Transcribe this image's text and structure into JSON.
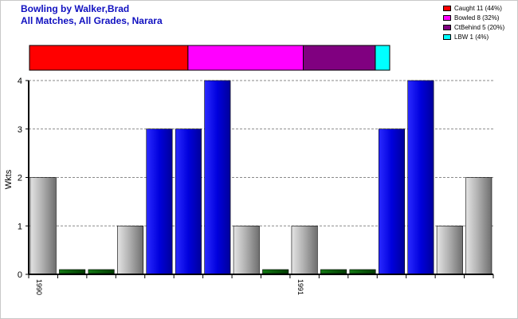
{
  "title": "Bowling by Walker,Brad",
  "subtitle": "All Matches, All Grades, Narara",
  "legend": [
    {
      "label": "Caught 11 (44%)",
      "color": "#ff0000"
    },
    {
      "label": "Bowled 8 (32%)",
      "color": "#ff00ff"
    },
    {
      "label": "CtBehind 5 (20%)",
      "color": "#800080"
    },
    {
      "label": "LBW 1 (4%)",
      "color": "#00ffff"
    }
  ],
  "chart_data": {
    "type": "bar",
    "ylabel": "Wkts",
    "xlabel": "",
    "ylim": [
      0,
      4
    ],
    "yticks": [
      0,
      1,
      2,
      3,
      4
    ],
    "grid": true,
    "legend_position": "top-right",
    "year_labels": [
      {
        "label": "1990",
        "index": 0
      },
      {
        "label": "1991",
        "index": 9
      }
    ],
    "values": [
      2,
      0,
      0,
      1,
      3,
      3,
      4,
      1,
      0,
      1,
      0,
      0,
      3,
      4,
      1,
      2
    ],
    "bar_kinds": [
      "gray",
      "green",
      "green",
      "gray",
      "blue",
      "blue",
      "blue",
      "gray",
      "green",
      "gray",
      "green",
      "green",
      "blue",
      "blue",
      "gray",
      "gray"
    ],
    "dismissals": [
      {
        "name": "Caught",
        "value": 11,
        "color": "#ff0000"
      },
      {
        "name": "Bowled",
        "value": 8,
        "color": "#ff00ff"
      },
      {
        "name": "CtBehind",
        "value": 5,
        "color": "#800080"
      },
      {
        "name": "LBW",
        "value": 1,
        "color": "#00ffff"
      }
    ]
  }
}
